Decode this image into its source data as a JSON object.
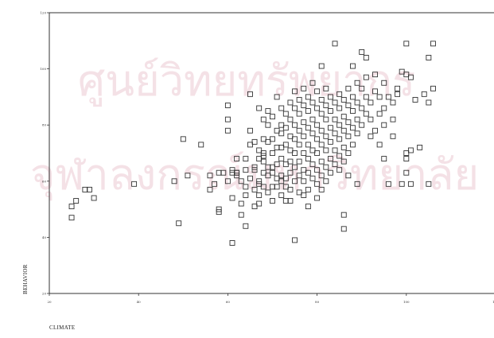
{
  "chart_data": {
    "type": "scatter",
    "xlabel": "CLIMATE",
    "ylabel": "BEHAVIOR",
    "xlim": [
      20,
      120
    ],
    "ylim": [
      20,
      120
    ],
    "x_ticks": [
      "20",
      "40",
      "60",
      "80",
      "100",
      "120"
    ],
    "y_ticks": [
      "20",
      "40",
      "60",
      "80",
      "100",
      "120"
    ],
    "grid": false,
    "legend": "none",
    "marker": "open-square",
    "watermark": [
      "ศูนย์วิทยทรัพยากร",
      "จุฬาลงกรณ์มหาวิทยาลัย"
    ],
    "points": [
      [
        25,
        47
      ],
      [
        25,
        51
      ],
      [
        26,
        53
      ],
      [
        28,
        57
      ],
      [
        29,
        57
      ],
      [
        30,
        54
      ],
      [
        39,
        59
      ],
      [
        49,
        45
      ],
      [
        48,
        60
      ],
      [
        50,
        75
      ],
      [
        51,
        62
      ],
      [
        54,
        73
      ],
      [
        56,
        57
      ],
      [
        56,
        62
      ],
      [
        57,
        59
      ],
      [
        58,
        63
      ],
      [
        58,
        50
      ],
      [
        58,
        49
      ],
      [
        59,
        63
      ],
      [
        60,
        60
      ],
      [
        60,
        78
      ],
      [
        60,
        82
      ],
      [
        60,
        87
      ],
      [
        61,
        64
      ],
      [
        61,
        63
      ],
      [
        61,
        54
      ],
      [
        61,
        38
      ],
      [
        62,
        68
      ],
      [
        62,
        63
      ],
      [
        62,
        62
      ],
      [
        62,
        63
      ],
      [
        63,
        52
      ],
      [
        63,
        60
      ],
      [
        63,
        48
      ],
      [
        64,
        55
      ],
      [
        64,
        68
      ],
      [
        64,
        64
      ],
      [
        64,
        58
      ],
      [
        64,
        44
      ],
      [
        65,
        73
      ],
      [
        65,
        61
      ],
      [
        65,
        91
      ],
      [
        65,
        78
      ],
      [
        66,
        57
      ],
      [
        66,
        65
      ],
      [
        66,
        64
      ],
      [
        66,
        74
      ],
      [
        66,
        51
      ],
      [
        67,
        59
      ],
      [
        67,
        60
      ],
      [
        67,
        68
      ],
      [
        67,
        71
      ],
      [
        67,
        86
      ],
      [
        67,
        55
      ],
      [
        67,
        52
      ],
      [
        68,
        82
      ],
      [
        68,
        75
      ],
      [
        68,
        69
      ],
      [
        68,
        70
      ],
      [
        68,
        67
      ],
      [
        68,
        63
      ],
      [
        68,
        58
      ],
      [
        69,
        85
      ],
      [
        69,
        80
      ],
      [
        69,
        74
      ],
      [
        69,
        65
      ],
      [
        69,
        62
      ],
      [
        69,
        56
      ],
      [
        70,
        83
      ],
      [
        70,
        75
      ],
      [
        70,
        70
      ],
      [
        70,
        65
      ],
      [
        70,
        63
      ],
      [
        70,
        58
      ],
      [
        70,
        53
      ],
      [
        71,
        90
      ],
      [
        71,
        78
      ],
      [
        71,
        72
      ],
      [
        71,
        66
      ],
      [
        71,
        61
      ],
      [
        71,
        58
      ],
      [
        72,
        86
      ],
      [
        72,
        80
      ],
      [
        72,
        77
      ],
      [
        72,
        72
      ],
      [
        72,
        68
      ],
      [
        72,
        62
      ],
      [
        72,
        60
      ],
      [
        72,
        55
      ],
      [
        73,
        84
      ],
      [
        73,
        79
      ],
      [
        73,
        73
      ],
      [
        73,
        66
      ],
      [
        73,
        61
      ],
      [
        73,
        58
      ],
      [
        73,
        53
      ],
      [
        74,
        88
      ],
      [
        74,
        82
      ],
      [
        74,
        76
      ],
      [
        74,
        71
      ],
      [
        74,
        67
      ],
      [
        74,
        63
      ],
      [
        74,
        57
      ],
      [
        74,
        53
      ],
      [
        75,
        92
      ],
      [
        75,
        86
      ],
      [
        75,
        80
      ],
      [
        75,
        75
      ],
      [
        75,
        70
      ],
      [
        75,
        65
      ],
      [
        75,
        60
      ],
      [
        75,
        39
      ],
      [
        76,
        89
      ],
      [
        76,
        84
      ],
      [
        76,
        78
      ],
      [
        76,
        73
      ],
      [
        76,
        67
      ],
      [
        76,
        62
      ],
      [
        76,
        56
      ],
      [
        77,
        93
      ],
      [
        77,
        87
      ],
      [
        77,
        81
      ],
      [
        77,
        76
      ],
      [
        77,
        70
      ],
      [
        77,
        64
      ],
      [
        77,
        60
      ],
      [
        77,
        55
      ],
      [
        78,
        90
      ],
      [
        78,
        85
      ],
      [
        78,
        79
      ],
      [
        78,
        73
      ],
      [
        78,
        68
      ],
      [
        78,
        63
      ],
      [
        78,
        57
      ],
      [
        78,
        51
      ],
      [
        79,
        95
      ],
      [
        79,
        88
      ],
      [
        79,
        82
      ],
      [
        79,
        77
      ],
      [
        79,
        71
      ],
      [
        79,
        66
      ],
      [
        79,
        61
      ],
      [
        80,
        92
      ],
      [
        80,
        86
      ],
      [
        80,
        80
      ],
      [
        80,
        75
      ],
      [
        80,
        70
      ],
      [
        80,
        64
      ],
      [
        80,
        59
      ],
      [
        80,
        54
      ],
      [
        81,
        101
      ],
      [
        81,
        89
      ],
      [
        81,
        84
      ],
      [
        81,
        78
      ],
      [
        81,
        73
      ],
      [
        81,
        67
      ],
      [
        81,
        62
      ],
      [
        81,
        57
      ],
      [
        82,
        93
      ],
      [
        82,
        87
      ],
      [
        82,
        82
      ],
      [
        82,
        76
      ],
      [
        82,
        71
      ],
      [
        82,
        65
      ],
      [
        82,
        60
      ],
      [
        83,
        90
      ],
      [
        83,
        85
      ],
      [
        83,
        79
      ],
      [
        83,
        74
      ],
      [
        83,
        68
      ],
      [
        83,
        63
      ],
      [
        84,
        109
      ],
      [
        84,
        88
      ],
      [
        84,
        82
      ],
      [
        84,
        77
      ],
      [
        84,
        71
      ],
      [
        84,
        66
      ],
      [
        85,
        91
      ],
      [
        85,
        86
      ],
      [
        85,
        80
      ],
      [
        85,
        75
      ],
      [
        85,
        69
      ],
      [
        85,
        64
      ],
      [
        86,
        89
      ],
      [
        86,
        83
      ],
      [
        86,
        78
      ],
      [
        86,
        72
      ],
      [
        86,
        67
      ],
      [
        86,
        43
      ],
      [
        86,
        48
      ],
      [
        87,
        93
      ],
      [
        87,
        87
      ],
      [
        87,
        81
      ],
      [
        87,
        76
      ],
      [
        87,
        70
      ],
      [
        87,
        62
      ],
      [
        88,
        101
      ],
      [
        88,
        90
      ],
      [
        88,
        85
      ],
      [
        88,
        79
      ],
      [
        88,
        73
      ],
      [
        89,
        95
      ],
      [
        89,
        88
      ],
      [
        89,
        82
      ],
      [
        89,
        77
      ],
      [
        89,
        59
      ],
      [
        90,
        106
      ],
      [
        90,
        93
      ],
      [
        90,
        86
      ],
      [
        90,
        80
      ],
      [
        91,
        104
      ],
      [
        91,
        97
      ],
      [
        91,
        90
      ],
      [
        91,
        84
      ],
      [
        92,
        88
      ],
      [
        92,
        82
      ],
      [
        92,
        76
      ],
      [
        93,
        98
      ],
      [
        93,
        92
      ],
      [
        93,
        78
      ],
      [
        94,
        90
      ],
      [
        94,
        84
      ],
      [
        94,
        73
      ],
      [
        95,
        95
      ],
      [
        95,
        86
      ],
      [
        95,
        80
      ],
      [
        96,
        90
      ],
      [
        96,
        59
      ],
      [
        97,
        88
      ],
      [
        97,
        82
      ],
      [
        98,
        93
      ],
      [
        99,
        99
      ],
      [
        99,
        59
      ],
      [
        100,
        98
      ],
      [
        100,
        109
      ],
      [
        100,
        70
      ],
      [
        100,
        68
      ],
      [
        100,
        63
      ],
      [
        101,
        71
      ],
      [
        101,
        59
      ],
      [
        102,
        89
      ],
      [
        104,
        91
      ],
      [
        105,
        88
      ],
      [
        105,
        104
      ],
      [
        106,
        109
      ],
      [
        106,
        93
      ],
      [
        105,
        59
      ],
      [
        103,
        72
      ],
      [
        101,
        97
      ],
      [
        98,
        91
      ],
      [
        97,
        76
      ],
      [
        95,
        68
      ]
    ]
  }
}
